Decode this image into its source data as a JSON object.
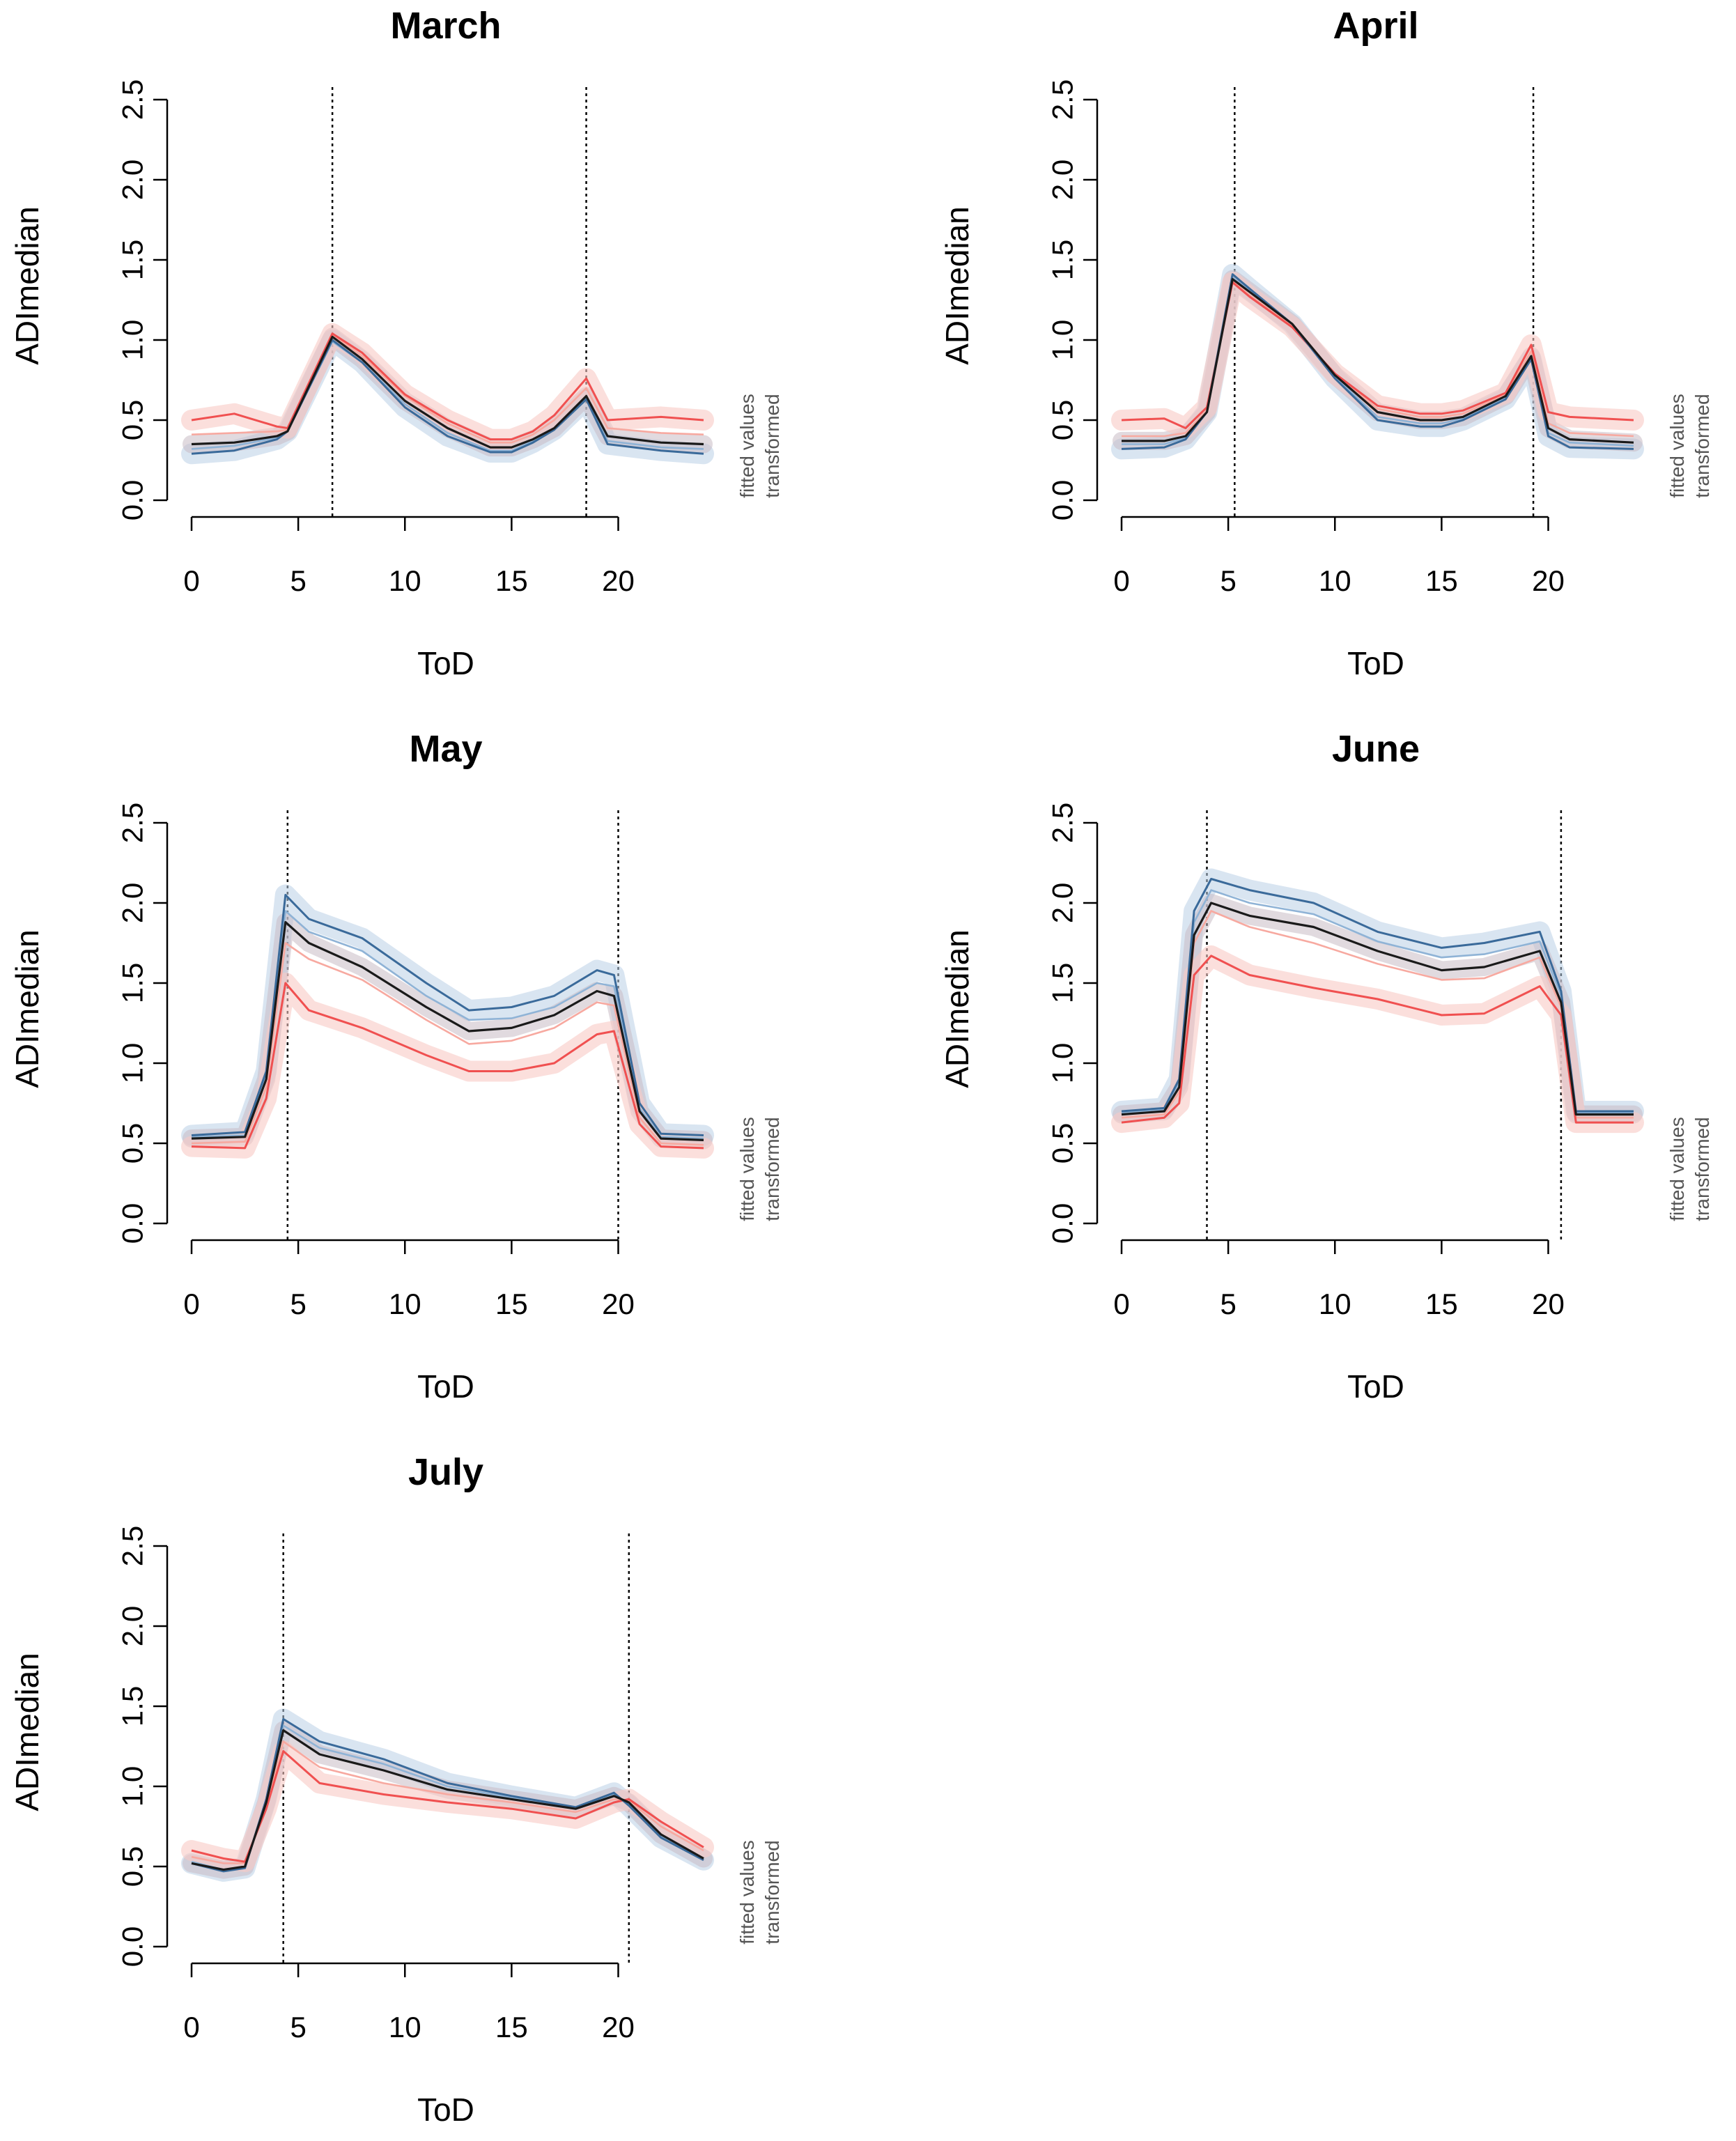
{
  "side_label_line1": "fitted values",
  "side_label_line2": "transformed",
  "colors": {
    "black_line": "#1a1a1a",
    "blue_dark": "#3a6a9a",
    "blue_light": "#8fb3d6",
    "blue_band": "#b9cfe6",
    "red": "#f05050",
    "red_light": "#f7a9a0",
    "red_band": "#f9c9c4",
    "grey_band": "#c9bcc4"
  },
  "chart_data": [
    {
      "type": "line",
      "title": "March",
      "xlabel": "ToD",
      "ylabel": "ADImedian",
      "xlim": [
        0,
        24
      ],
      "ylim": [
        0,
        2.5
      ],
      "x_ticks": [
        "0",
        "5",
        "10",
        "15",
        "20"
      ],
      "y_ticks": [
        "0.0",
        "0.5",
        "1.0",
        "1.5",
        "2.0",
        "2.5"
      ],
      "vlines": [
        6.6,
        18.5
      ],
      "x": [
        0,
        2,
        4,
        4.5,
        6.6,
        8,
        10,
        12,
        14,
        15,
        16,
        17,
        18.5,
        19.5,
        22,
        24
      ],
      "series": [
        {
          "name": "black",
          "values": [
            0.35,
            0.36,
            0.4,
            0.43,
            1.02,
            0.88,
            0.62,
            0.45,
            0.33,
            0.33,
            0.38,
            0.45,
            0.65,
            0.4,
            0.36,
            0.35
          ]
        },
        {
          "name": "blue-dark",
          "values": [
            0.29,
            0.31,
            0.38,
            0.43,
            1.0,
            0.86,
            0.58,
            0.4,
            0.3,
            0.3,
            0.36,
            0.44,
            0.63,
            0.35,
            0.31,
            0.29
          ]
        },
        {
          "name": "blue-light",
          "values": [
            0.32,
            0.34,
            0.39,
            0.43,
            0.99,
            0.86,
            0.6,
            0.42,
            0.31,
            0.31,
            0.37,
            0.45,
            0.64,
            0.37,
            0.33,
            0.32
          ]
        },
        {
          "name": "red-light",
          "values": [
            0.41,
            0.42,
            0.43,
            0.44,
            1.03,
            0.9,
            0.65,
            0.48,
            0.36,
            0.36,
            0.41,
            0.5,
            0.7,
            0.45,
            0.42,
            0.41
          ]
        },
        {
          "name": "red",
          "values": [
            0.5,
            0.54,
            0.46,
            0.45,
            1.04,
            0.92,
            0.66,
            0.5,
            0.38,
            0.38,
            0.43,
            0.53,
            0.76,
            0.5,
            0.52,
            0.5
          ]
        }
      ]
    },
    {
      "type": "line",
      "title": "April",
      "xlabel": "ToD",
      "ylabel": "ADImedian",
      "xlim": [
        0,
        24
      ],
      "ylim": [
        0,
        2.5
      ],
      "x_ticks": [
        "0",
        "5",
        "10",
        "15",
        "20"
      ],
      "y_ticks": [
        "0.0",
        "0.5",
        "1.0",
        "1.5",
        "2.0",
        "2.5"
      ],
      "vlines": [
        5.3,
        19.3
      ],
      "x": [
        0,
        2,
        3,
        4,
        5.2,
        6,
        8,
        10,
        12,
        14,
        15,
        16,
        18,
        19.2,
        20,
        21,
        24
      ],
      "series": [
        {
          "name": "black",
          "values": [
            0.37,
            0.37,
            0.4,
            0.55,
            1.38,
            1.3,
            1.1,
            0.78,
            0.55,
            0.5,
            0.5,
            0.52,
            0.65,
            0.9,
            0.45,
            0.38,
            0.36
          ]
        },
        {
          "name": "blue-dark",
          "values": [
            0.32,
            0.33,
            0.38,
            0.55,
            1.41,
            1.32,
            1.1,
            0.76,
            0.5,
            0.46,
            0.46,
            0.5,
            0.63,
            0.88,
            0.4,
            0.33,
            0.32
          ]
        },
        {
          "name": "blue-light",
          "values": [
            0.35,
            0.35,
            0.39,
            0.55,
            1.39,
            1.31,
            1.1,
            0.77,
            0.52,
            0.48,
            0.48,
            0.51,
            0.64,
            0.89,
            0.42,
            0.36,
            0.34
          ]
        },
        {
          "name": "red-light",
          "values": [
            0.4,
            0.4,
            0.42,
            0.56,
            1.37,
            1.28,
            1.09,
            0.78,
            0.57,
            0.52,
            0.52,
            0.54,
            0.66,
            0.93,
            0.48,
            0.42,
            0.4
          ]
        },
        {
          "name": "red",
          "values": [
            0.5,
            0.51,
            0.45,
            0.58,
            1.36,
            1.27,
            1.08,
            0.79,
            0.59,
            0.54,
            0.54,
            0.56,
            0.67,
            0.97,
            0.55,
            0.52,
            0.5
          ]
        }
      ]
    },
    {
      "type": "line",
      "title": "May",
      "xlabel": "ToD",
      "ylabel": "ADImedian",
      "xlim": [
        0,
        24
      ],
      "ylim": [
        0,
        2.5
      ],
      "x_ticks": [
        "0",
        "5",
        "10",
        "15",
        "20"
      ],
      "y_ticks": [
        "0.0",
        "0.5",
        "1.0",
        "1.5",
        "2.0",
        "2.5"
      ],
      "vlines": [
        4.5,
        20.0
      ],
      "x": [
        0,
        2.5,
        3.5,
        4.4,
        5.5,
        8,
        11,
        13,
        15,
        17,
        19,
        19.8,
        21,
        22,
        24
      ],
      "series": [
        {
          "name": "black",
          "values": [
            0.53,
            0.54,
            0.9,
            1.88,
            1.75,
            1.6,
            1.35,
            1.2,
            1.22,
            1.3,
            1.45,
            1.42,
            0.7,
            0.53,
            0.52
          ]
        },
        {
          "name": "blue-dark",
          "values": [
            0.55,
            0.57,
            0.95,
            2.05,
            1.9,
            1.78,
            1.5,
            1.33,
            1.35,
            1.42,
            1.58,
            1.55,
            0.75,
            0.56,
            0.55
          ]
        },
        {
          "name": "blue-light",
          "values": [
            0.54,
            0.55,
            0.92,
            1.95,
            1.82,
            1.7,
            1.42,
            1.27,
            1.28,
            1.35,
            1.5,
            1.48,
            0.72,
            0.54,
            0.53
          ]
        },
        {
          "name": "red-light",
          "values": [
            0.5,
            0.51,
            0.85,
            1.75,
            1.65,
            1.52,
            1.27,
            1.12,
            1.14,
            1.22,
            1.38,
            1.36,
            0.66,
            0.5,
            0.49
          ]
        },
        {
          "name": "red",
          "values": [
            0.48,
            0.47,
            0.78,
            1.5,
            1.33,
            1.22,
            1.05,
            0.95,
            0.95,
            1.0,
            1.18,
            1.2,
            0.62,
            0.48,
            0.47
          ]
        }
      ]
    },
    {
      "type": "line",
      "title": "June",
      "xlabel": "ToD",
      "ylabel": "ADImedian",
      "xlim": [
        0,
        24
      ],
      "ylim": [
        0,
        2.5
      ],
      "x_ticks": [
        "0",
        "5",
        "10",
        "15",
        "20"
      ],
      "y_ticks": [
        "0.0",
        "0.5",
        "1.0",
        "1.5",
        "2.0",
        "2.5"
      ],
      "vlines": [
        4.0,
        20.6
      ],
      "x": [
        0,
        2,
        2.7,
        3.4,
        4.2,
        6,
        9,
        12,
        15,
        17,
        19.6,
        20.6,
        21.3,
        24
      ],
      "series": [
        {
          "name": "black",
          "values": [
            0.68,
            0.7,
            0.85,
            1.8,
            2.0,
            1.92,
            1.85,
            1.7,
            1.58,
            1.6,
            1.7,
            1.38,
            0.68,
            0.68
          ]
        },
        {
          "name": "blue-dark",
          "values": [
            0.7,
            0.72,
            0.9,
            1.95,
            2.15,
            2.08,
            2.0,
            1.82,
            1.72,
            1.75,
            1.82,
            1.45,
            0.7,
            0.7
          ]
        },
        {
          "name": "blue-light",
          "values": [
            0.69,
            0.71,
            0.88,
            1.88,
            2.08,
            2.0,
            1.93,
            1.76,
            1.66,
            1.68,
            1.76,
            1.42,
            0.69,
            0.69
          ]
        },
        {
          "name": "red-light",
          "values": [
            0.66,
            0.68,
            0.82,
            1.75,
            1.95,
            1.85,
            1.75,
            1.62,
            1.52,
            1.53,
            1.66,
            1.35,
            0.66,
            0.66
          ]
        },
        {
          "name": "red",
          "values": [
            0.63,
            0.66,
            0.75,
            1.55,
            1.67,
            1.55,
            1.47,
            1.4,
            1.3,
            1.31,
            1.48,
            1.3,
            0.63,
            0.63
          ]
        }
      ]
    },
    {
      "type": "line",
      "title": "July",
      "xlabel": "ToD",
      "ylabel": "ADImedian",
      "xlim": [
        0,
        24
      ],
      "ylim": [
        0,
        2.5
      ],
      "x_ticks": [
        "0",
        "5",
        "10",
        "15",
        "20"
      ],
      "y_ticks": [
        "0.0",
        "0.5",
        "1.0",
        "1.5",
        "2.0",
        "2.5"
      ],
      "vlines": [
        4.3,
        20.5
      ],
      "x": [
        0,
        1.5,
        2.5,
        3.5,
        4.3,
        6,
        9,
        12,
        15,
        18,
        19.8,
        20.5,
        22,
        24
      ],
      "series": [
        {
          "name": "black",
          "values": [
            0.52,
            0.48,
            0.5,
            0.9,
            1.35,
            1.2,
            1.1,
            0.98,
            0.92,
            0.86,
            0.94,
            0.9,
            0.7,
            0.55
          ]
        },
        {
          "name": "blue-dark",
          "values": [
            0.52,
            0.47,
            0.49,
            0.92,
            1.42,
            1.28,
            1.17,
            1.02,
            0.94,
            0.87,
            0.96,
            0.88,
            0.68,
            0.54
          ]
        },
        {
          "name": "blue-light",
          "values": [
            0.53,
            0.48,
            0.5,
            0.91,
            1.38,
            1.24,
            1.14,
            1.0,
            0.93,
            0.86,
            0.95,
            0.89,
            0.69,
            0.55
          ]
        },
        {
          "name": "red-light",
          "values": [
            0.56,
            0.52,
            0.52,
            0.88,
            1.28,
            1.12,
            1.02,
            0.95,
            0.9,
            0.84,
            0.92,
            0.91,
            0.75,
            0.6
          ]
        },
        {
          "name": "red",
          "values": [
            0.6,
            0.55,
            0.53,
            0.86,
            1.22,
            1.02,
            0.95,
            0.9,
            0.86,
            0.8,
            0.9,
            0.92,
            0.78,
            0.62
          ]
        }
      ]
    }
  ]
}
